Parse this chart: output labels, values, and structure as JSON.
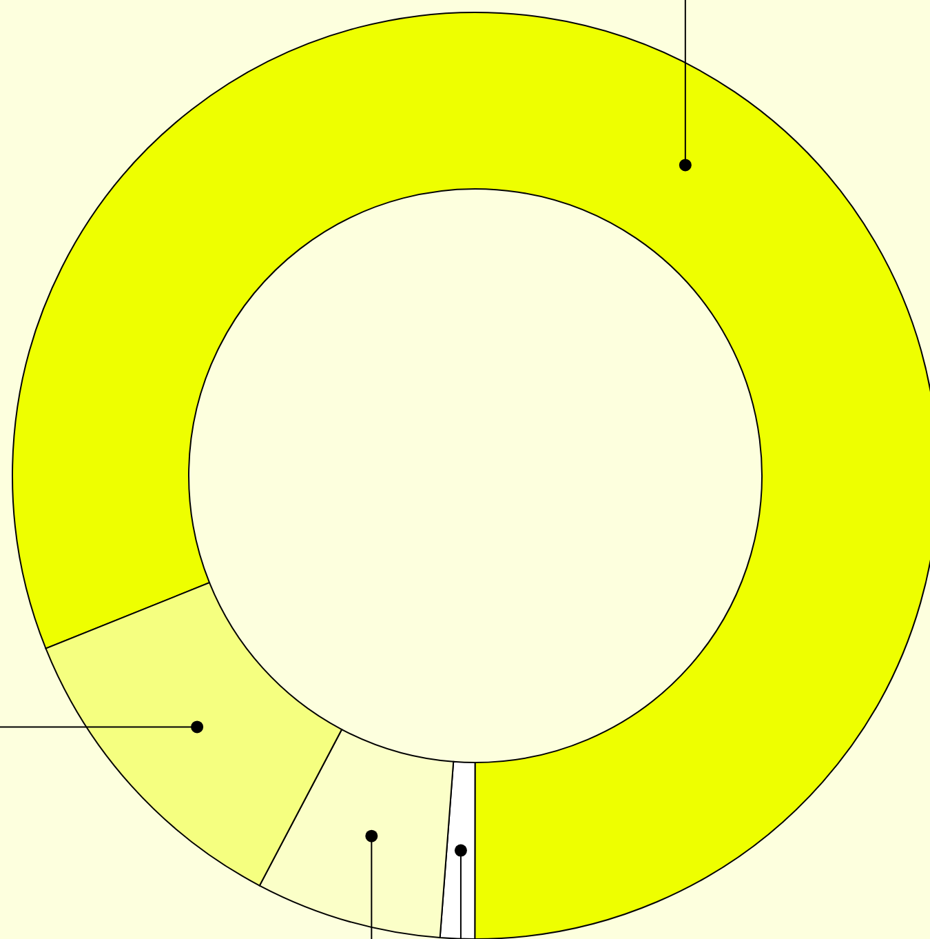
{
  "chart_data": {
    "type": "donut",
    "categories": [
      null,
      null,
      null,
      null
    ],
    "values": [
      81.1,
      1.2,
      6.5,
      11.2
    ],
    "colors": [
      "#eeff00",
      "#ffffff",
      "#fbffc8",
      "#f5ff80"
    ]
  }
}
